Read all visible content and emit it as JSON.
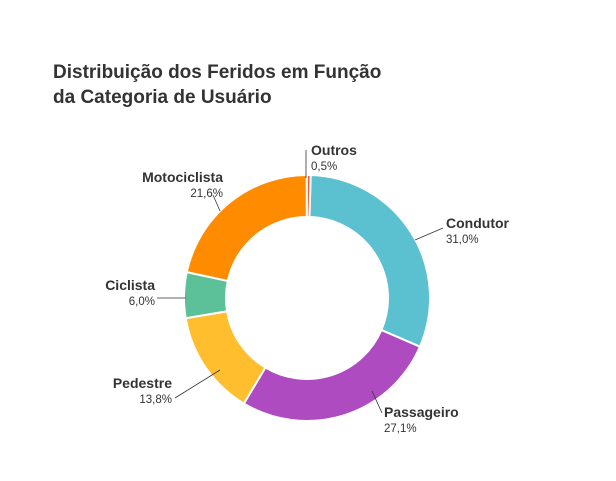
{
  "chart_data": {
    "type": "pie",
    "title_lines": [
      "Distribuição dos Feridos em Função",
      "da Categoria de Usuário"
    ],
    "donut": true,
    "slices": [
      {
        "name": "Condutor",
        "value": 31.0,
        "value_label": "31,0%",
        "color": "#5BC0D0"
      },
      {
        "name": "Passageiro",
        "value": 27.1,
        "value_label": "27,1%",
        "color": "#AE4BC0"
      },
      {
        "name": "Pedestre",
        "value": 13.8,
        "value_label": "13,8%",
        "color": "#FFBE2E"
      },
      {
        "name": "Ciclista",
        "value": 6.0,
        "value_label": "6,0%",
        "color": "#5CC098"
      },
      {
        "name": "Motociclista",
        "value": 21.6,
        "value_label": "21,6%",
        "color": "#FF8C00"
      },
      {
        "name": "Outros",
        "value": 0.5,
        "value_label": "0,5%",
        "color": "#F2603A"
      }
    ]
  }
}
